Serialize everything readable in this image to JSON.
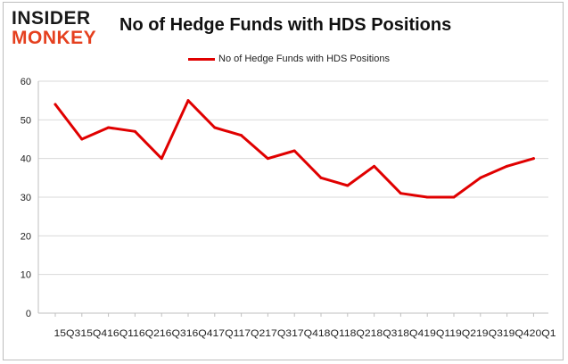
{
  "logo": {
    "line1": "INSIDER",
    "line2": "MONKEY"
  },
  "chart_data": {
    "type": "line",
    "title": "No of Hedge Funds with HDS Positions",
    "xlabel": "",
    "ylabel": "",
    "x_tick_text": "15Q315Q416Q116Q216Q316Q417Q117Q217Q317Q418Q118Q218Q318Q419Q119Q219Q319Q420Q1",
    "categories": [
      "15Q3",
      "15Q4",
      "16Q1",
      "16Q2",
      "16Q3",
      "16Q4",
      "17Q1",
      "17Q2",
      "17Q3",
      "17Q4",
      "18Q1",
      "18Q2",
      "18Q3",
      "18Q4",
      "19Q1",
      "19Q2",
      "19Q3",
      "19Q4",
      "20Q1"
    ],
    "series": [
      {
        "name": "No of Hedge Funds with HDS Positions",
        "color": "#e00000",
        "values": [
          54,
          45,
          48,
          47,
          40,
          55,
          48,
          46,
          40,
          42,
          35,
          33,
          38,
          31,
          30,
          30,
          35,
          38,
          40
        ]
      }
    ],
    "ylim": [
      0,
      60
    ],
    "yticks": [
      0,
      10,
      20,
      30,
      40,
      50,
      60
    ],
    "grid": true,
    "legend": "top-center"
  }
}
